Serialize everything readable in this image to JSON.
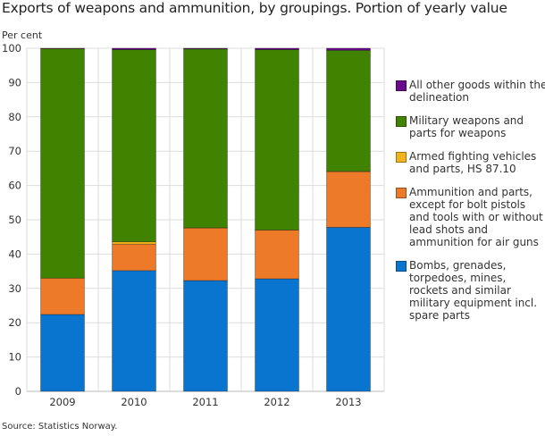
{
  "chart_data": {
    "type": "bar",
    "stacked": true,
    "title": "Exports of weapons and ammunition, by groupings. Portion of yearly value",
    "ylabel": "Per cent",
    "xlabel": "",
    "ylim": [
      0,
      100
    ],
    "yticks": [
      0,
      10,
      20,
      30,
      40,
      50,
      60,
      70,
      80,
      90,
      100
    ],
    "grid": true,
    "legend_position": "right",
    "categories": [
      "2009",
      "2010",
      "2011",
      "2012",
      "2013"
    ],
    "series": [
      {
        "name": "Bombs, grenades, torpedoes, mines, rockets and similar military equipment incl. spare parts",
        "color": "#0a75cf",
        "values": [
          22.4,
          35.2,
          32.3,
          32.8,
          47.8
        ]
      },
      {
        "name": "Ammunition and parts, except for bolt pistols and tools with or without lead shots and ammunition for air guns",
        "color": "#ec7a28",
        "values": [
          10.6,
          7.7,
          15.3,
          14.2,
          16.2
        ]
      },
      {
        "name": "Armed fighting vehicles and parts, HS 87.10",
        "color": "#f0b41c",
        "values": [
          0.0,
          0.7,
          0.1,
          0.0,
          0.2
        ]
      },
      {
        "name": "Military weapons and parts for weapons",
        "color": "#3f8300",
        "values": [
          66.9,
          56.0,
          52.1,
          52.6,
          35.2
        ]
      },
      {
        "name": "All other goods within the delineation",
        "color": "#6a0b8a",
        "values": [
          0.1,
          0.4,
          0.2,
          0.4,
          0.6
        ]
      }
    ],
    "legend_order": [
      4,
      3,
      2,
      1,
      0
    ],
    "source": "Source: Statistics Norway."
  }
}
